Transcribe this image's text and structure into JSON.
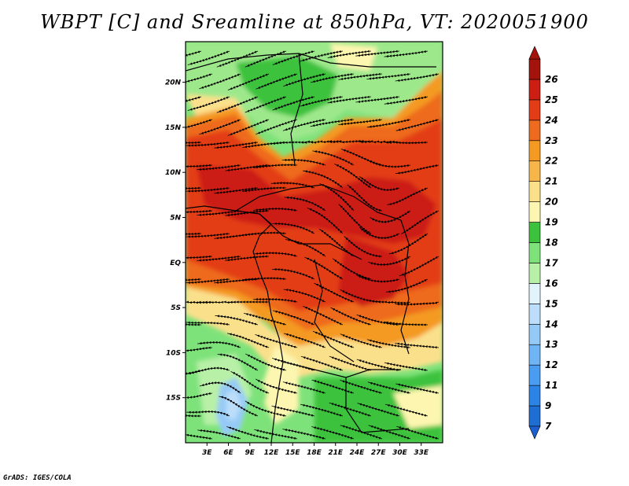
{
  "title": "WBPT [C] and Sreamline at 850hPa, VT: 2020051900",
  "credit": "GrADS: IGES/COLA",
  "map": {
    "lon_range": [
      0,
      36
    ],
    "lat_range": [
      -20,
      24.5
    ],
    "lat_ticks": [
      {
        "value": 20,
        "label": "20N"
      },
      {
        "value": 15,
        "label": "15N"
      },
      {
        "value": 10,
        "label": "10N"
      },
      {
        "value": 5,
        "label": "5N"
      },
      {
        "value": 0,
        "label": "EQ"
      },
      {
        "value": -5,
        "label": "5S"
      },
      {
        "value": -10,
        "label": "10S"
      },
      {
        "value": -15,
        "label": "15S"
      }
    ],
    "lon_ticks": [
      {
        "value": 3,
        "label": "3E"
      },
      {
        "value": 6,
        "label": "6E"
      },
      {
        "value": 9,
        "label": "9E"
      },
      {
        "value": 12,
        "label": "12E"
      },
      {
        "value": 15,
        "label": "15E"
      },
      {
        "value": 18,
        "label": "18E"
      },
      {
        "value": 21,
        "label": "21E"
      },
      {
        "value": 24,
        "label": "24E"
      },
      {
        "value": 27,
        "label": "27E"
      },
      {
        "value": 30,
        "label": "30E"
      },
      {
        "value": 33,
        "label": "33E"
      }
    ]
  },
  "colorbar": {
    "levels": [
      {
        "label": "7",
        "color": "#1e6ed4"
      },
      {
        "label": "9",
        "color": "#2c84e6"
      },
      {
        "label": "11",
        "color": "#4a9cf0"
      },
      {
        "label": "12",
        "color": "#6fb4f4"
      },
      {
        "label": "13",
        "color": "#96caf6"
      },
      {
        "label": "14",
        "color": "#bcdefa"
      },
      {
        "label": "15",
        "color": "#e2f4fb"
      },
      {
        "label": "16",
        "color": "#b8f0a8"
      },
      {
        "label": "17",
        "color": "#7ee27a"
      },
      {
        "label": "18",
        "color": "#3cc23c"
      },
      {
        "label": "19",
        "color": "#fdf6b0"
      },
      {
        "label": "20",
        "color": "#fbe08c"
      },
      {
        "label": "21",
        "color": "#f7b64a"
      },
      {
        "label": "22",
        "color": "#f49a22"
      },
      {
        "label": "23",
        "color": "#ee6a1e"
      },
      {
        "label": "24",
        "color": "#e33c18"
      },
      {
        "label": "25",
        "color": "#cc1e12"
      },
      {
        "label": "26",
        "color": "#a4140c"
      }
    ],
    "low_arrow_color": "#1c5fd0",
    "high_arrow_color": "#a4140c"
  }
}
